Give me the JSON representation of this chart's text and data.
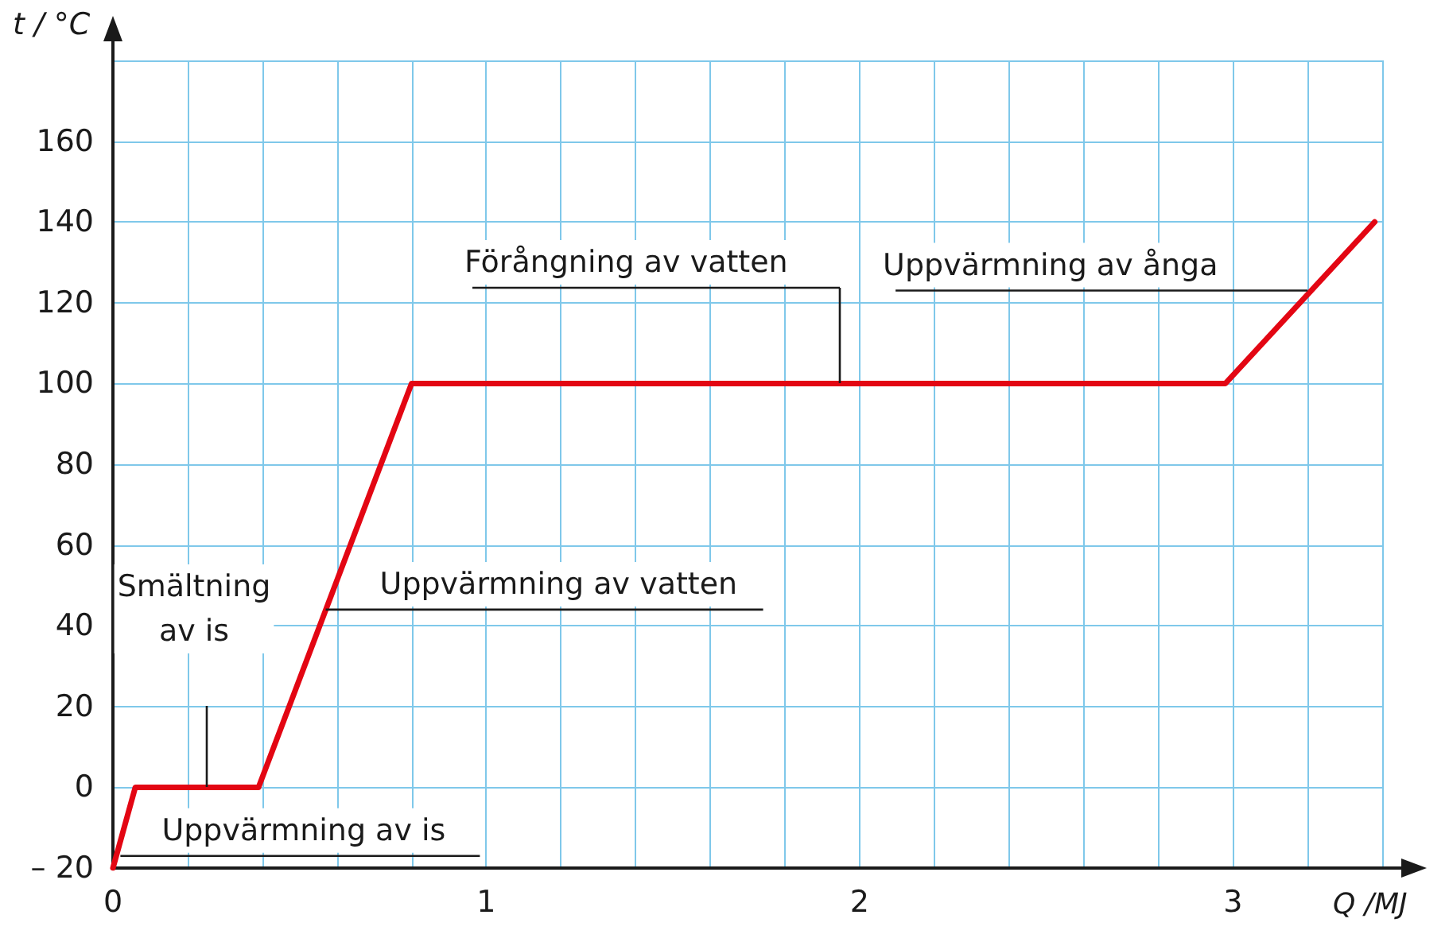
{
  "chart_data": {
    "type": "line",
    "xlabel": "Q /MJ",
    "ylabel": "t / °C",
    "series": [
      {
        "color": "#e30613",
        "x": [
          0,
          0.06,
          0.39,
          0.8,
          2.98,
          3.38
        ],
        "values": [
          -20,
          0,
          0,
          100,
          100,
          140
        ]
      }
    ],
    "xlim": [
      0,
      3.4
    ],
    "xticks": [
      0,
      {
        "value": 0.2,
        "label": null
      },
      {
        "value": 0.4,
        "label": null
      },
      {
        "value": 0.6,
        "label": null
      },
      {
        "value": 0.8,
        "label": null
      },
      1,
      {
        "value": 1.2,
        "label": null
      },
      {
        "value": 1.4,
        "label": null
      },
      {
        "value": 1.6,
        "label": null
      },
      {
        "value": 1.8,
        "label": null
      },
      2,
      {
        "value": 2.2,
        "label": null
      },
      {
        "value": 2.4,
        "label": null
      },
      {
        "value": 2.6,
        "label": null
      },
      {
        "value": 2.8,
        "label": null
      },
      3,
      {
        "value": 3.2,
        "label": null
      },
      {
        "value": 3.4,
        "label": null
      }
    ],
    "ylim": [
      -20,
      180
    ],
    "yticks": [
      {
        "value": -20,
        "label": "– 20"
      },
      0,
      20,
      40,
      60,
      80,
      100,
      120,
      140,
      160,
      {
        "value": 180,
        "label": null
      }
    ],
    "grid": true,
    "marker": "none",
    "line_style": "solid",
    "annotations": [
      {
        "text": "Uppvärmning av is",
        "x": 0.02,
        "y": -17
      },
      "Smältning\nav is",
      {
        "text": "Uppvärmning av vatten",
        "x": 0.57,
        "y": 44
      },
      "Förångning av vatten",
      {
        "text": "Uppvärmning av ånga",
        "x": 3.2,
        "y": 123
      }
    ]
  }
}
